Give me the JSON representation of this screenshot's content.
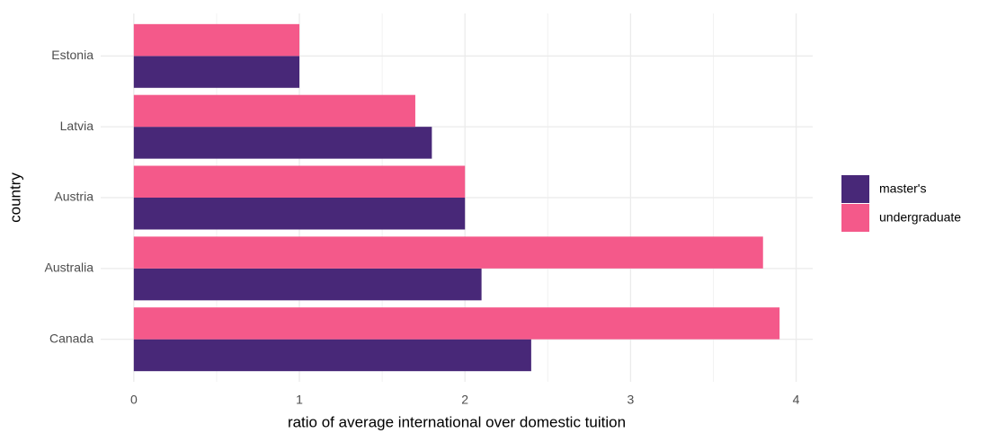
{
  "chart_data": {
    "type": "bar",
    "orientation": "horizontal",
    "xlabel": "ratio of average international over domestic tuition",
    "ylabel": "country",
    "categories": [
      "Estonia",
      "Latvia",
      "Austria",
      "Australia",
      "Canada"
    ],
    "series": [
      {
        "name": "master's",
        "color": "#482878",
        "values": [
          1.0,
          1.8,
          2.0,
          2.1,
          2.4
        ]
      },
      {
        "name": "undergraduate",
        "color": "#f4598a",
        "values": [
          1.0,
          1.7,
          2.0,
          3.8,
          3.9
        ]
      }
    ],
    "xlim": [
      -0.2,
      4.1
    ],
    "xticks": [
      0,
      1,
      2,
      3,
      4
    ],
    "minor_xticks": [
      0.5,
      1.5,
      2.5,
      3.5
    ],
    "grid": true,
    "legend": "right"
  }
}
